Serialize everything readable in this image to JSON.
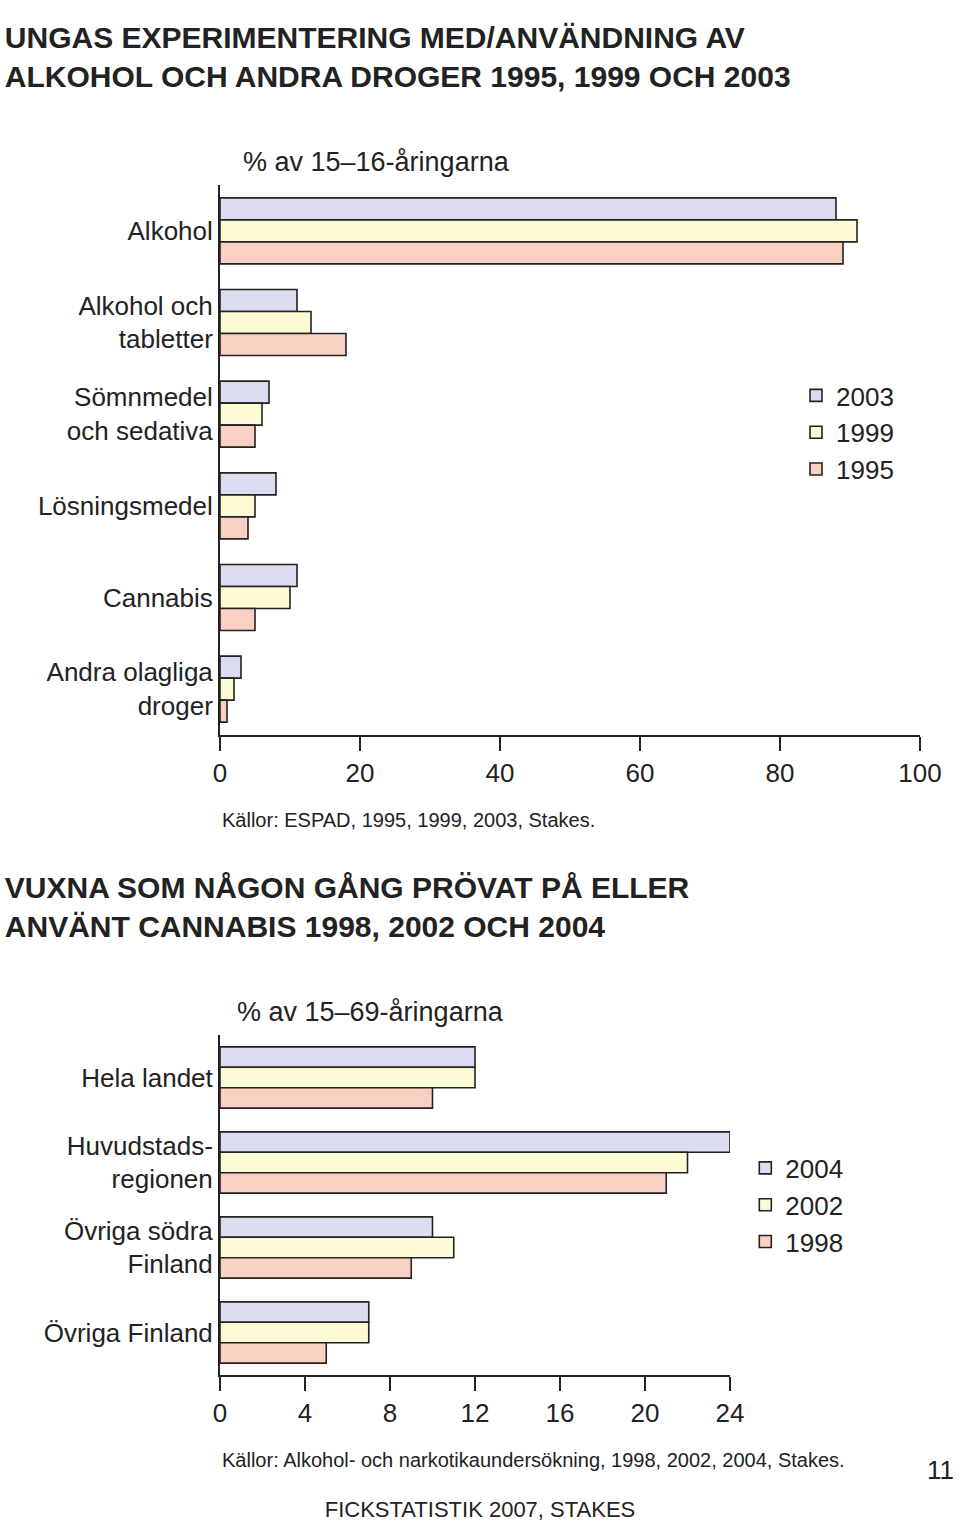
{
  "chart_data": [
    {
      "type": "bar",
      "orientation": "horizontal",
      "title": "UNGAS EXPERIMENTERING MED/ANVÄNDNING AV\nALKOHOL OCH ANDRA DROGER 1995, 1999 OCH 2003",
      "x_label": "% av 15–16-åringarna",
      "source": "Källor: ESPAD, 1995, 1999, 2003, Stakes.",
      "categories": [
        "Alkohol",
        "Alkohol och\ntabletter",
        "Sömnmedel\noch sedativa",
        "Lösningsmedel",
        "Cannabis",
        "Andra olagliga\ndroger"
      ],
      "series": [
        {
          "name": "2003",
          "color": "#dcdcf0",
          "values": [
            88,
            11,
            7,
            8,
            11,
            3
          ]
        },
        {
          "name": "1999",
          "color": "#fdfbd3",
          "values": [
            91,
            13,
            6,
            5,
            10,
            2
          ]
        },
        {
          "name": "1995",
          "color": "#f9d0c2",
          "values": [
            89,
            18,
            5,
            4,
            5,
            1
          ]
        }
      ],
      "xlim": [
        0,
        100
      ],
      "xticks": [
        0,
        20,
        40,
        60,
        80,
        100
      ],
      "grid": false,
      "legend": "center right"
    },
    {
      "type": "bar",
      "orientation": "horizontal",
      "title": "VUXNA SOM NÅGON GÅNG PRÖVAT PÅ ELLER\nANVÄNT CANNABIS 1998, 2002 OCH 2004",
      "x_label": "% av 15–69-åringarna",
      "source": "Källor: Alkohol- och narkotikaundersökning, 1998, 2002, 2004, Stakes.",
      "categories": [
        "Hela landet",
        "Huvudstads-\nregionen",
        "Övriga södra\nFinland",
        "Övriga Finland"
      ],
      "series": [
        {
          "name": "2004",
          "color": "#dcdcf0",
          "values": [
            12,
            24,
            10,
            7
          ]
        },
        {
          "name": "2002",
          "color": "#fdfbd3",
          "values": [
            12,
            22,
            11,
            7
          ]
        },
        {
          "name": "1998",
          "color": "#f9d0c2",
          "values": [
            10,
            21,
            9,
            5
          ]
        }
      ],
      "xlim": [
        0,
        24
      ],
      "xticks": [
        0,
        4,
        8,
        12,
        16,
        20,
        24
      ],
      "grid": false,
      "legend": "right"
    }
  ],
  "page": {
    "footer": "FICKSTATISTIK 2007, STAKES",
    "number": "11"
  }
}
